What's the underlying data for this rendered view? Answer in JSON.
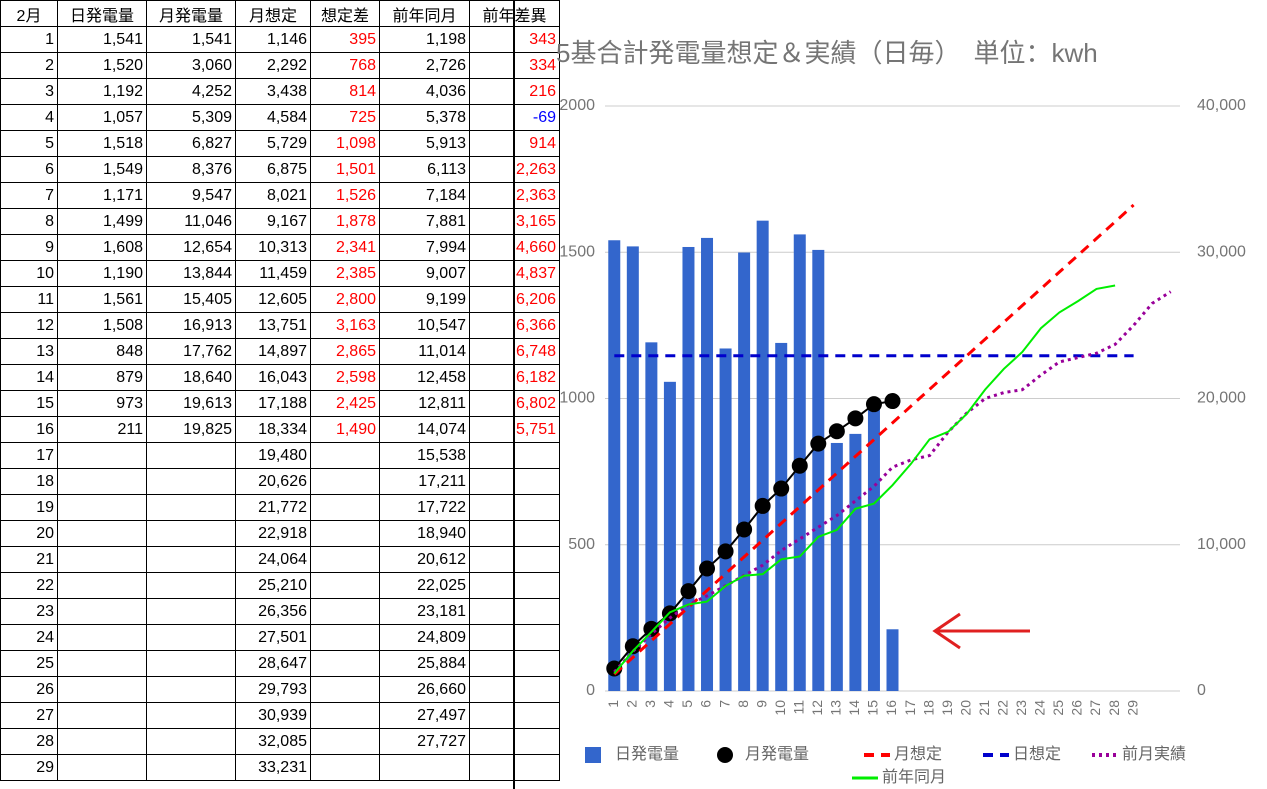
{
  "table": {
    "header": [
      "2月",
      "日発電量",
      "月発電量",
      "月想定",
      "想定差",
      "前年同月",
      "前年差異"
    ],
    "rows": [
      [
        "1",
        "1,541",
        "1,541",
        "1,146",
        "395",
        "1,198",
        "343"
      ],
      [
        "2",
        "1,520",
        "3,060",
        "2,292",
        "768",
        "2,726",
        "334"
      ],
      [
        "3",
        "1,192",
        "4,252",
        "3,438",
        "814",
        "4,036",
        "216"
      ],
      [
        "4",
        "1,057",
        "5,309",
        "4,584",
        "725",
        "5,378",
        "-69"
      ],
      [
        "5",
        "1,518",
        "6,827",
        "5,729",
        "1,098",
        "5,913",
        "914"
      ],
      [
        "6",
        "1,549",
        "8,376",
        "6,875",
        "1,501",
        "6,113",
        "2,263"
      ],
      [
        "7",
        "1,171",
        "9,547",
        "8,021",
        "1,526",
        "7,184",
        "2,363"
      ],
      [
        "8",
        "1,499",
        "11,046",
        "9,167",
        "1,878",
        "7,881",
        "3,165"
      ],
      [
        "9",
        "1,608",
        "12,654",
        "10,313",
        "2,341",
        "7,994",
        "4,660"
      ],
      [
        "10",
        "1,190",
        "13,844",
        "11,459",
        "2,385",
        "9,007",
        "4,837"
      ],
      [
        "11",
        "1,561",
        "15,405",
        "12,605",
        "2,800",
        "9,199",
        "6,206"
      ],
      [
        "12",
        "1,508",
        "16,913",
        "13,751",
        "3,163",
        "10,547",
        "6,366"
      ],
      [
        "13",
        "848",
        "17,762",
        "14,897",
        "2,865",
        "11,014",
        "6,748"
      ],
      [
        "14",
        "879",
        "18,640",
        "16,043",
        "2,598",
        "12,458",
        "6,182"
      ],
      [
        "15",
        "973",
        "19,613",
        "17,188",
        "2,425",
        "12,811",
        "6,802"
      ],
      [
        "16",
        "211",
        "19,825",
        "18,334",
        "1,490",
        "14,074",
        "5,751"
      ],
      [
        "17",
        null,
        null,
        "19,480",
        null,
        "15,538",
        null
      ],
      [
        "18",
        null,
        null,
        "20,626",
        null,
        "17,211",
        null
      ],
      [
        "19",
        null,
        null,
        "21,772",
        null,
        "17,722",
        null
      ],
      [
        "20",
        null,
        null,
        "22,918",
        null,
        "18,940",
        null
      ],
      [
        "21",
        null,
        null,
        "24,064",
        null,
        "20,612",
        null
      ],
      [
        "22",
        null,
        null,
        "25,210",
        null,
        "22,025",
        null
      ],
      [
        "23",
        null,
        null,
        "26,356",
        null,
        "23,181",
        null
      ],
      [
        "24",
        null,
        null,
        "27,501",
        null,
        "24,809",
        null
      ],
      [
        "25",
        null,
        null,
        "28,647",
        null,
        "25,884",
        null
      ],
      [
        "26",
        null,
        null,
        "29,793",
        null,
        "26,660",
        null
      ],
      [
        "27",
        null,
        null,
        "30,939",
        null,
        "27,497",
        null
      ],
      [
        "28",
        null,
        null,
        "32,085",
        null,
        "27,727",
        null
      ],
      [
        "29",
        null,
        null,
        "33,231",
        null,
        null,
        null
      ]
    ]
  },
  "chart_data": {
    "type": "combo",
    "title": "5基合計発電量想定＆実績（日毎）　単位：kwh",
    "categories": [
      "1",
      "2",
      "3",
      "4",
      "5",
      "6",
      "7",
      "8",
      "9",
      "10",
      "11",
      "12",
      "13",
      "14",
      "15",
      "16",
      "17",
      "18",
      "19",
      "20",
      "21",
      "22",
      "23",
      "24",
      "25",
      "26",
      "27",
      "28",
      "29",
      null,
      null
    ],
    "ylim": [
      0,
      2000
    ],
    "yticks": [
      0,
      500,
      1000,
      1500,
      2000
    ],
    "y2lim": [
      0,
      40000
    ],
    "y2ticks": [
      0,
      {
        "value": 10000,
        "label": "10,000"
      },
      {
        "value": 20000,
        "label": "20,000"
      },
      {
        "value": 30000,
        "label": "30,000"
      },
      {
        "value": 40000,
        "label": "40,000"
      }
    ],
    "grid": true,
    "legend": "bottom",
    "series": [
      {
        "name": "日発電量",
        "type": "bar",
        "color": "#3366cc",
        "values": [
          1541,
          1520,
          1192,
          1057,
          1518,
          1549,
          1171,
          1499,
          1608,
          1190,
          1561,
          1508,
          848,
          879,
          973,
          211,
          null,
          null,
          null,
          null,
          null,
          null,
          null,
          null,
          null,
          null,
          null,
          null,
          null,
          null,
          null
        ]
      },
      {
        "name": "月発電量",
        "type": "line",
        "marker": "circle",
        "color": "#000000",
        "axis": "y2",
        "values": [
          1541,
          3060,
          4252,
          5309,
          6827,
          8376,
          9547,
          11046,
          12654,
          13844,
          15405,
          16913,
          17762,
          18640,
          19613,
          19825,
          null,
          null,
          null,
          null,
          null,
          null,
          null,
          null,
          null,
          null,
          null,
          null,
          null,
          null,
          null
        ]
      },
      {
        "name": "月想定",
        "type": "line",
        "line_style": "dashed",
        "color": "#ff0000",
        "axis": "y2",
        "values": [
          1146,
          2292,
          3438,
          4584,
          5729,
          6875,
          8021,
          9167,
          10313,
          11459,
          12605,
          13751,
          14897,
          16043,
          17188,
          18334,
          19480,
          20626,
          21772,
          22918,
          24064,
          25210,
          26356,
          27501,
          28647,
          29793,
          30939,
          32085,
          33231,
          null,
          null
        ]
      },
      {
        "name": "日想定",
        "type": "line",
        "line_style": "dashed",
        "color": "#0000cc",
        "values": [
          1146,
          1146,
          1146,
          1146,
          1146,
          1146,
          1146,
          1146,
          1146,
          1146,
          1146,
          1146,
          1146,
          1146,
          1146,
          1146,
          1146,
          1146,
          1146,
          1146,
          1146,
          1146,
          1146,
          1146,
          1146,
          1146,
          1146,
          1146,
          1146,
          null,
          null
        ]
      },
      {
        "name": "前月実績",
        "type": "line",
        "line_style": "dotted",
        "color": "#990099",
        "axis": "y2",
        "values": [
          1300,
          2700,
          3900,
          5000,
          5900,
          6500,
          7200,
          7900,
          8600,
          9600,
          10400,
          11200,
          12000,
          13000,
          14000,
          15300,
          15800,
          16100,
          17700,
          19000,
          20000,
          20400,
          20600,
          21600,
          22500,
          22800,
          23100,
          23700,
          25000,
          26500,
          27300
        ]
      },
      {
        "name": "前年同月",
        "type": "line",
        "color": "#00ee00",
        "axis": "y2",
        "values": [
          1198,
          2726,
          4036,
          5378,
          5913,
          6113,
          7184,
          7881,
          7994,
          9007,
          9199,
          10547,
          11014,
          12458,
          12811,
          14074,
          15538,
          17211,
          17722,
          18940,
          20612,
          22025,
          23181,
          24809,
          25884,
          26660,
          27497,
          27727,
          null,
          null,
          null
        ]
      }
    ]
  }
}
